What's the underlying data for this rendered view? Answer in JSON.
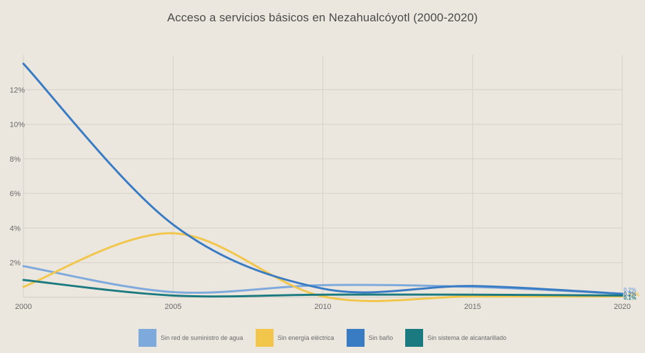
{
  "chart_data": {
    "type": "line",
    "title": "Acceso a servicios básicos en Nezahualcóyotl (2000-2020)",
    "xlabel": "",
    "ylabel": "",
    "x": [
      2000,
      2005,
      2010,
      2015,
      2020
    ],
    "x_ticks": [
      "2000",
      "2005",
      "2010",
      "2015",
      "2020"
    ],
    "y_ticks": [
      "2%",
      "4%",
      "6%",
      "8%",
      "10%",
      "12%"
    ],
    "ylim": [
      0,
      14
    ],
    "grid": true,
    "legend_position": "bottom",
    "series": [
      {
        "name": "Sin red de suministro de agua",
        "values": [
          1.8,
          0.3,
          0.7,
          0.6,
          0.2
        ],
        "color": "#7ea9dc",
        "end_label": "0.2%"
      },
      {
        "name": "Sin energía eléctrica",
        "values": [
          0.6,
          3.7,
          0.05,
          0.05,
          0.05
        ],
        "color": "#f2c64a",
        "end_label": "0.05%"
      },
      {
        "name": "Sin baño",
        "values": [
          13.5,
          4.2,
          0.5,
          0.65,
          0.2
        ],
        "color": "#3a7cc4",
        "end_label": "0.2%"
      },
      {
        "name": "Sin sistema de alcantarillado",
        "values": [
          1.0,
          0.1,
          0.15,
          0.15,
          0.1
        ],
        "color": "#1a7a80",
        "end_label": "0.1%"
      }
    ]
  }
}
